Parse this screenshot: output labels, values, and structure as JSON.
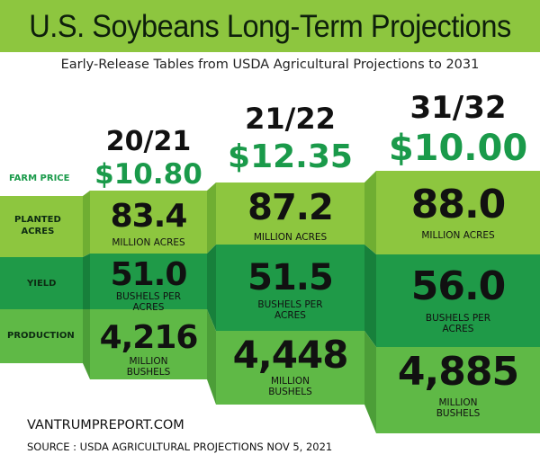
{
  "title": "U.S. Soybeans Long-Term Projections",
  "subtitle": "Early-Release Tables from USDA Agricultural Projections to 2031",
  "row_labels": {
    "farm_price": "FARM PRICE",
    "planted_acres": [
      "PLANTED",
      "ACRES"
    ],
    "yield": "YIELD",
    "production": "PRODUCTION"
  },
  "columns": [
    {
      "year": "20/21",
      "farm_price": "$10.80",
      "planted_acres": {
        "value": "83.4",
        "unit": "MILLION ACRES"
      },
      "yield": {
        "value": "51.0",
        "unit": [
          "BUSHELS PER",
          "ACRES"
        ]
      },
      "production": {
        "value": "4,216",
        "unit": [
          "MILLION",
          "BUSHELS"
        ]
      }
    },
    {
      "year": "21/22",
      "farm_price": "$12.35",
      "planted_acres": {
        "value": "87.2",
        "unit": "MILLION ACRES"
      },
      "yield": {
        "value": "51.5",
        "unit": [
          "BUSHELS PER",
          "ACRES"
        ]
      },
      "production": {
        "value": "4,448",
        "unit": [
          "MILLION",
          "BUSHELS"
        ]
      }
    },
    {
      "year": "31/32",
      "farm_price": "$10.00",
      "planted_acres": {
        "value": "88.0",
        "unit": "MILLION ACRES"
      },
      "yield": {
        "value": "56.0",
        "unit": [
          "BUSHELS PER",
          "ACRES"
        ]
      },
      "production": {
        "value": "4,885",
        "unit": [
          "MILLION",
          "BUSHELS"
        ]
      }
    }
  ],
  "footer": {
    "site": "VANTRUMPREPORT.COM",
    "source": "SOURCE : USDA AGRICULTURAL PROJECTIONS NOV 5, 2021"
  },
  "colors": {
    "title_bar": "#8dc63f",
    "light_green": "#8dc63f",
    "mid_green": "#5fb946",
    "dark_green": "#1f9a48",
    "price_green": "#1a9a4a"
  }
}
